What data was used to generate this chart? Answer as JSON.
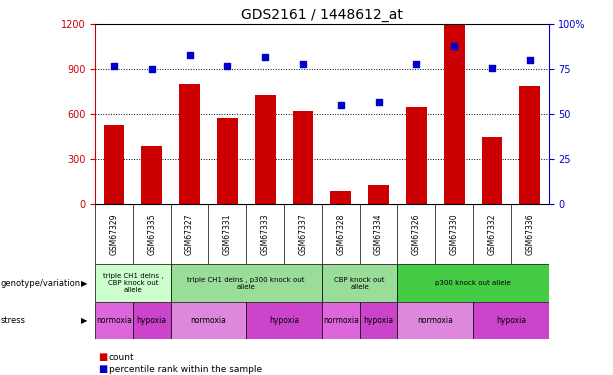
{
  "title": "GDS2161 / 1448612_at",
  "samples": [
    "GSM67329",
    "GSM67335",
    "GSM67327",
    "GSM67331",
    "GSM67333",
    "GSM67337",
    "GSM67328",
    "GSM67334",
    "GSM67326",
    "GSM67330",
    "GSM67332",
    "GSM67336"
  ],
  "counts": [
    530,
    390,
    800,
    575,
    730,
    620,
    90,
    130,
    650,
    1195,
    450,
    790
  ],
  "percentiles": [
    77,
    75,
    83,
    77,
    82,
    78,
    55,
    57,
    78,
    88,
    76,
    80
  ],
  "ylim_left": [
    0,
    1200
  ],
  "ylim_right": [
    0,
    100
  ],
  "yticks_left": [
    0,
    300,
    600,
    900,
    1200
  ],
  "yticks_right": [
    0,
    25,
    50,
    75,
    100
  ],
  "bar_color": "#cc0000",
  "dot_color": "#0000cc",
  "background_color": "#ffffff",
  "genotype_groups": [
    {
      "label": "triple CH1 delns ,\nCBP knock out\nallele",
      "start": 0,
      "end": 2,
      "color": "#ccffcc"
    },
    {
      "label": "triple CH1 delns , p300 knock out\nallele",
      "start": 2,
      "end": 6,
      "color": "#99dd99"
    },
    {
      "label": "CBP knock out\nallele",
      "start": 6,
      "end": 8,
      "color": "#99dd99"
    },
    {
      "label": "p300 knock out allele",
      "start": 8,
      "end": 12,
      "color": "#44cc44"
    }
  ],
  "stress_groups": [
    {
      "label": "normoxia",
      "start": 0,
      "end": 1,
      "color": "#dd66dd"
    },
    {
      "label": "hypoxia",
      "start": 1,
      "end": 2,
      "color": "#cc44cc"
    },
    {
      "label": "normoxia",
      "start": 2,
      "end": 4,
      "color": "#dd88dd"
    },
    {
      "label": "hypoxia",
      "start": 4,
      "end": 6,
      "color": "#cc44cc"
    },
    {
      "label": "normoxia",
      "start": 6,
      "end": 7,
      "color": "#dd66dd"
    },
    {
      "label": "hypoxia",
      "start": 7,
      "end": 8,
      "color": "#cc44cc"
    },
    {
      "label": "normoxia",
      "start": 8,
      "end": 10,
      "color": "#dd88dd"
    },
    {
      "label": "hypoxia",
      "start": 10,
      "end": 12,
      "color": "#cc44cc"
    }
  ]
}
